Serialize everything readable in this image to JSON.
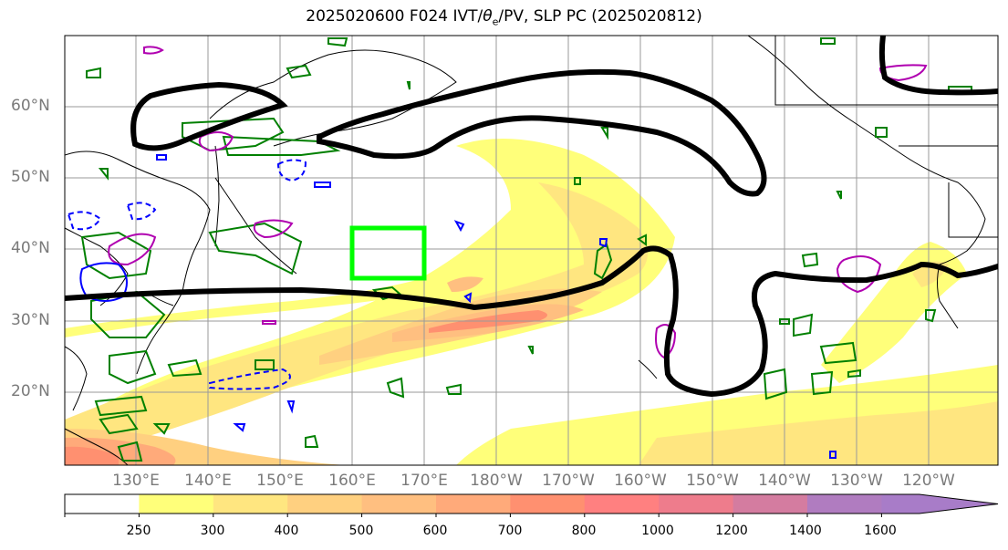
{
  "title": {
    "run": "2025020600 F024 IVT/",
    "theta": "θ",
    "theta_sub": "e",
    "rest": "/PV, SLP PC (2025020812)"
  },
  "map": {
    "lat_labels": [
      "60°N",
      "50°N",
      "40°N",
      "30°N",
      "20°N"
    ],
    "lon_labels": [
      "130°E",
      "140°E",
      "150°E",
      "160°E",
      "170°E",
      "180°W",
      "170°W",
      "160°W",
      "150°W",
      "140°W",
      "130°W",
      "120°W"
    ],
    "highlight_box_color": "#00ff00",
    "contour_colors": {
      "slp": "#000000",
      "theta_e": "#008000",
      "pv_pos": "#b000b0",
      "pv_neg": "#0000ff"
    }
  },
  "colorbar": {
    "ticks": [
      "250",
      "300",
      "400",
      "500",
      "600",
      "700",
      "800",
      "1000",
      "1200",
      "1400",
      "1600"
    ],
    "colors": [
      "#ffffff",
      "#ffff7a",
      "#ffe680",
      "#ffd080",
      "#ffbf80",
      "#ffaa7a",
      "#ff9070",
      "#ff8080",
      "#ee7c8c",
      "#d47ca0",
      "#b07cc0",
      "#a87cc8"
    ]
  }
}
